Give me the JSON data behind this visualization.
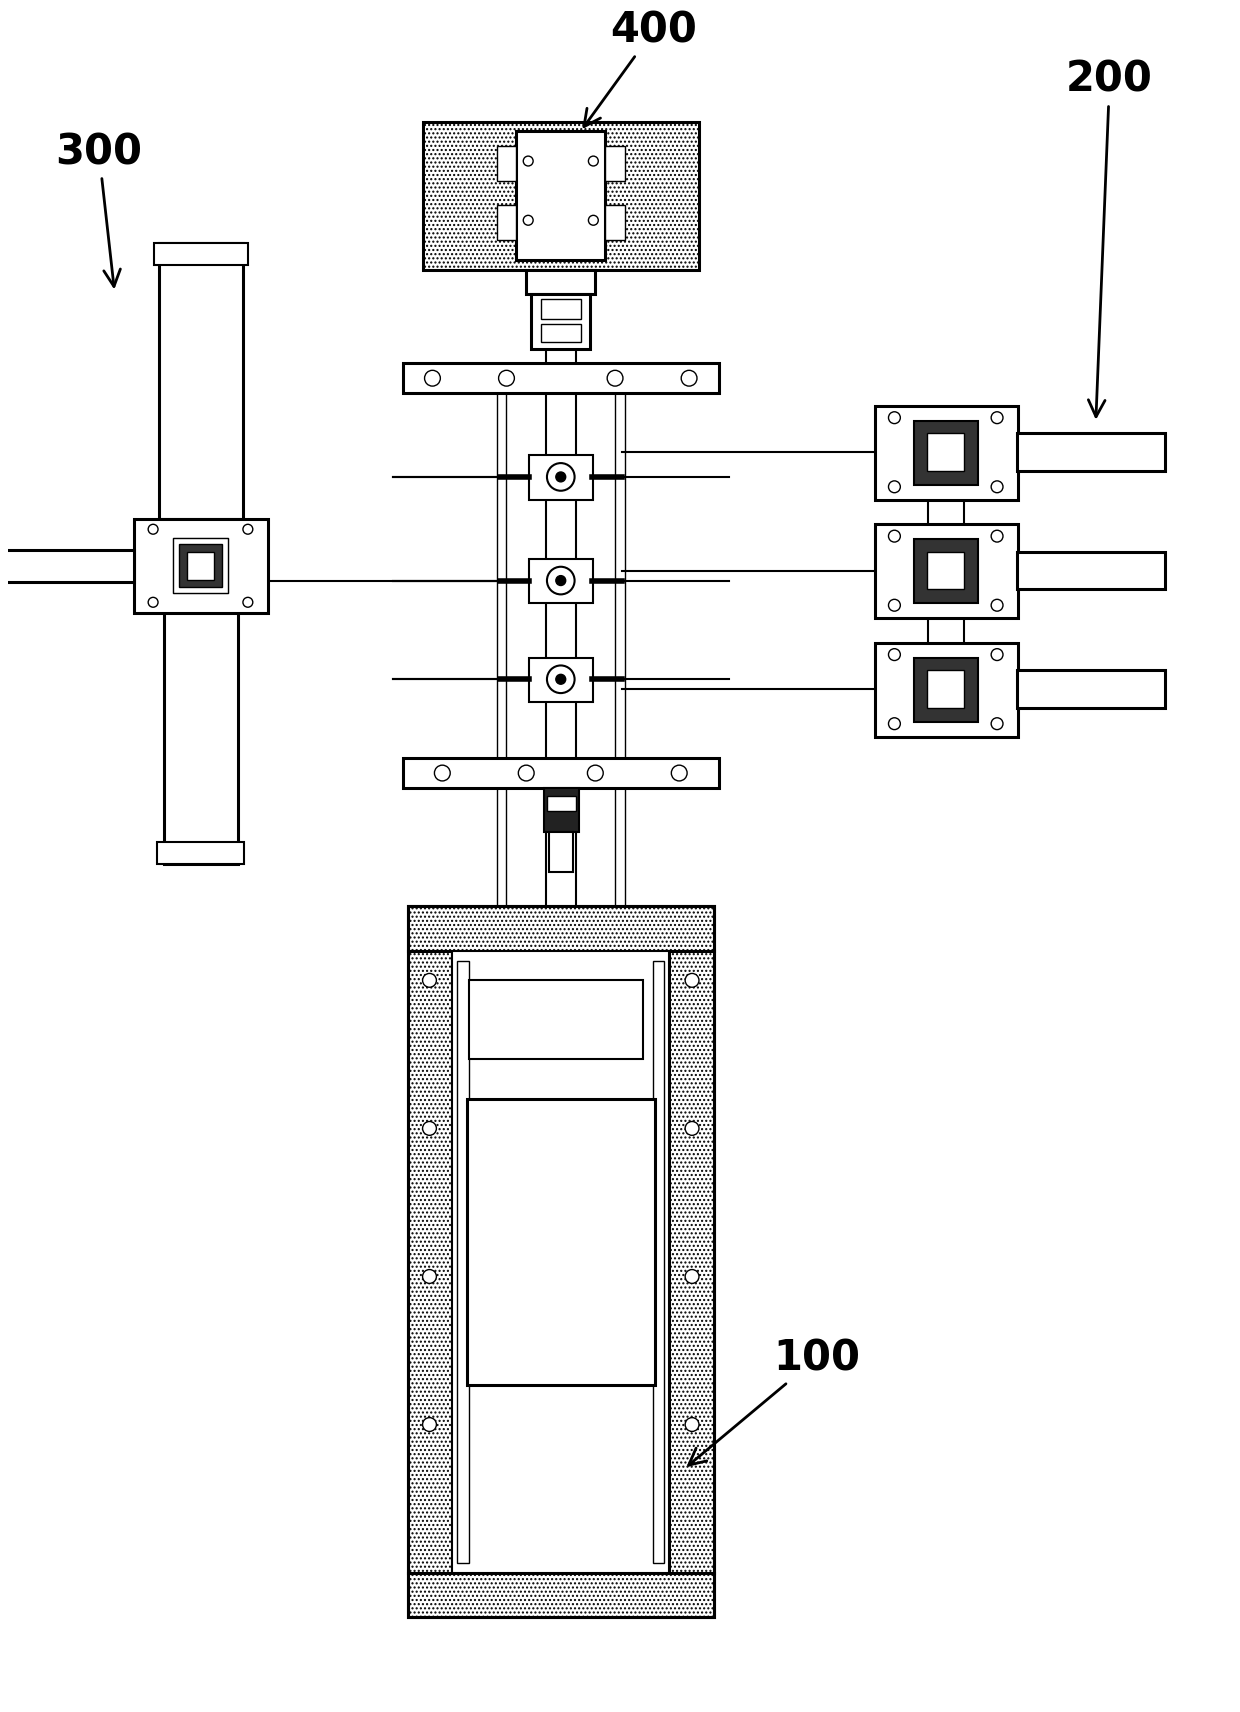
{
  "bg_color": "#ffffff",
  "fig_width": 12.4,
  "fig_height": 17.12,
  "dpi": 100
}
